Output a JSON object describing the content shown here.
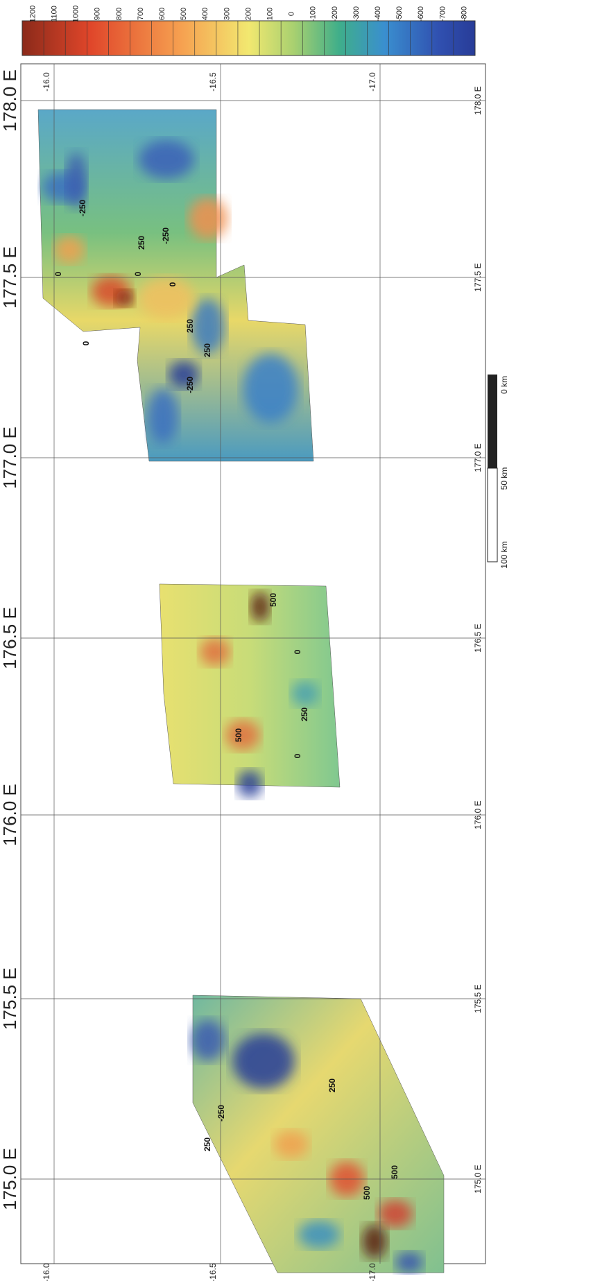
{
  "colorbar": {
    "labels": [
      "1200",
      "1100",
      "1000",
      "900",
      "800",
      "700",
      "600",
      "500",
      "400",
      "300",
      "200",
      "100",
      "0",
      "-100",
      "-200",
      "-300",
      "-400",
      "-500",
      "-600",
      "-700",
      "-800"
    ]
  },
  "longitude_labels_major": [
    "178.0 E",
    "177.5 E",
    "177.0 E",
    "176.5 E",
    "176.0 E",
    "175.5 E",
    "175.0 E"
  ],
  "longitude_labels_minor": [
    "178.0 E",
    "177.5 E",
    "177.0 E",
    "176.5 E",
    "176.0 E",
    "175.5 E",
    "175.0 E"
  ],
  "latitude_labels_top": [
    "-16.0",
    "-16.5",
    "-17.0"
  ],
  "latitude_labels_bottom": [
    "-16.0",
    "-16.5",
    "-17.0"
  ],
  "contour_labels": [
    "-250",
    "250",
    "0",
    "250",
    "0",
    "250",
    "-250",
    "0",
    "-250",
    "0",
    "500",
    "250",
    "0",
    "500",
    "0",
    "-250",
    "250",
    "250",
    "500",
    "500"
  ],
  "scale_bar": {
    "labels": [
      "0 km",
      "50 km",
      "100 km"
    ]
  }
}
